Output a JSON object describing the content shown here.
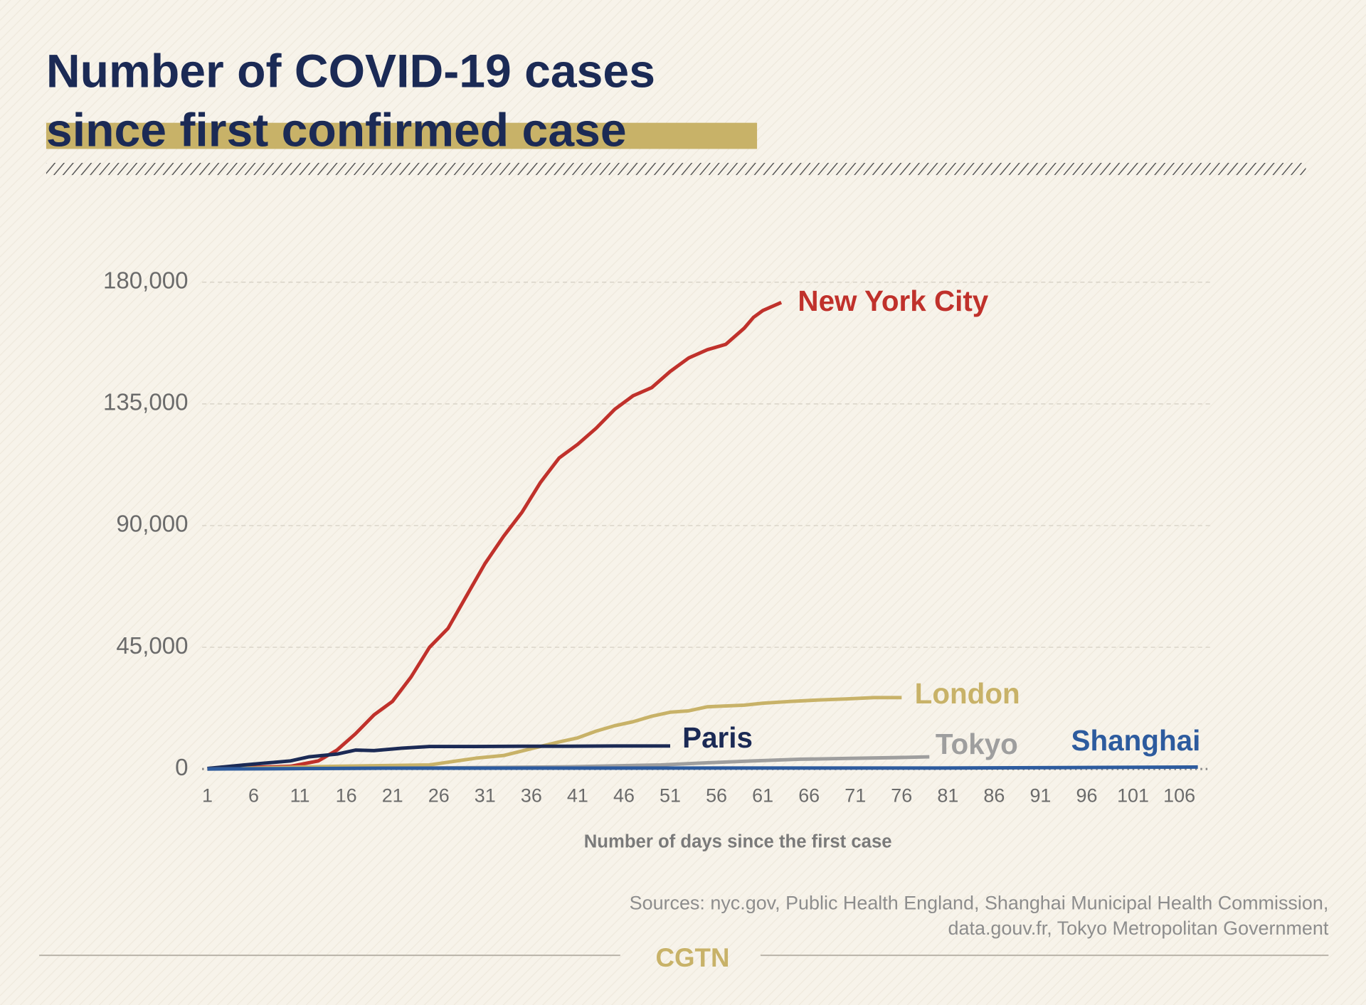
{
  "chart_data": {
    "type": "line",
    "title": [
      "Number of COVID-19 cases",
      "since first confirmed case"
    ],
    "xlabel": "Number of days since the first case",
    "source": [
      "Sources: nyc.gov, Public Health England, Shanghai Municipal Health Commission,",
      "data.gouv.fr, Tokyo Metropolitan Government"
    ],
    "brand": "CGTN",
    "xlim": [
      1,
      108
    ],
    "xticks": [
      1,
      6,
      11,
      16,
      21,
      26,
      31,
      36,
      41,
      46,
      51,
      56,
      61,
      66,
      71,
      76,
      81,
      86,
      91,
      96,
      101,
      106
    ],
    "ylim": [
      0,
      180000
    ],
    "yticks": [
      {
        "value": 0,
        "label": "0"
      },
      {
        "value": 45000,
        "label": "45,000"
      },
      {
        "value": 90000,
        "label": "90,000"
      },
      {
        "value": 135000,
        "label": "135,000"
      },
      {
        "value": 180000,
        "label": "180,000"
      }
    ],
    "grid": true,
    "series": [
      {
        "name": "New York City",
        "color": "#c0312b",
        "x": [
          1,
          5,
          10,
          13,
          15,
          17,
          19,
          21,
          23,
          25,
          27,
          29,
          31,
          33,
          35,
          37,
          39,
          41,
          43,
          45,
          47,
          49,
          51,
          53,
          55,
          57,
          59,
          60,
          61,
          63
        ],
        "values": [
          0,
          500,
          1000,
          3000,
          7000,
          13000,
          20000,
          25000,
          34000,
          45000,
          52000,
          64000,
          76000,
          86000,
          95000,
          106000,
          115000,
          120000,
          126000,
          133000,
          138000,
          141000,
          147000,
          152000,
          155000,
          157000,
          163000,
          167000,
          169500,
          172500
        ]
      },
      {
        "name": "London",
        "color": "#c8b268",
        "x": [
          1,
          15,
          25,
          27,
          30,
          33,
          36,
          39,
          41,
          43,
          45,
          47,
          49,
          51,
          53,
          55,
          57,
          59,
          61,
          64,
          67,
          70,
          73,
          76
        ],
        "values": [
          0,
          1000,
          1500,
          2500,
          4000,
          5000,
          7500,
          10000,
          11500,
          14000,
          16000,
          17500,
          19500,
          21000,
          21500,
          23000,
          23300,
          23600,
          24300,
          25000,
          25500,
          25900,
          26400,
          26400
        ]
      },
      {
        "name": "Paris",
        "color": "#1b2a55",
        "x": [
          1,
          5,
          10,
          12,
          15,
          17,
          19,
          22,
          25,
          30,
          35,
          40,
          45,
          51
        ],
        "values": [
          200,
          1500,
          3000,
          4500,
          5500,
          7000,
          6800,
          7700,
          8300,
          8300,
          8400,
          8400,
          8500,
          8500
        ]
      },
      {
        "name": "Tokyo",
        "color": "#9e9e9e",
        "x": [
          1,
          20,
          30,
          40,
          50,
          55,
          60,
          65,
          70,
          75,
          79
        ],
        "values": [
          0,
          300,
          500,
          800,
          1500,
          2300,
          3000,
          3600,
          3900,
          4200,
          4500
        ]
      },
      {
        "name": "Shanghai",
        "color": "#2d5b9e",
        "x": [
          1,
          20,
          40,
          60,
          80,
          100,
          108
        ],
        "values": [
          0,
          300,
          330,
          340,
          350,
          600,
          700
        ]
      }
    ]
  }
}
